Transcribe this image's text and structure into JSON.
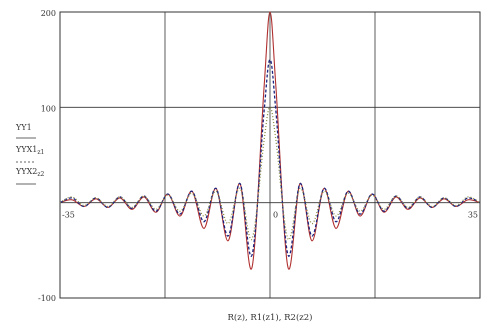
{
  "chart_data": {
    "type": "line",
    "xlabel": "R(z), R1(z1), R2(z2)",
    "ylabel_lines": [
      "YY1",
      "YYX1",
      "YYX2"
    ],
    "ylabel_subscripts": [
      "",
      "z1",
      "z2"
    ],
    "xlim": [
      -35,
      35
    ],
    "ylim": [
      -100,
      200
    ],
    "y_ticks": [
      "200",
      "100",
      "-100"
    ],
    "x_tick_labels": [
      "-35",
      "0",
      "35"
    ],
    "grid": true,
    "series": [
      {
        "color": "#b03030",
        "style": "solid",
        "peak": 200,
        "x": [
          -35,
          -33,
          -31,
          -29,
          -27,
          -25,
          -23,
          -21,
          -19,
          -17,
          -15,
          -13,
          -11,
          -9,
          -7,
          -5,
          -3,
          -1,
          0,
          1,
          3,
          5,
          7,
          9,
          11,
          13,
          15,
          17,
          19,
          21,
          23,
          25,
          27,
          29,
          31,
          33,
          35
        ],
        "y": [
          0,
          3,
          -4,
          4,
          -5,
          5,
          -7,
          6,
          -10,
          9,
          -14,
          12,
          -27,
          15,
          -40,
          20,
          -68,
          120,
          200,
          120,
          -68,
          20,
          -40,
          15,
          -27,
          12,
          -14,
          9,
          -10,
          6,
          -7,
          5,
          -5,
          4,
          -4,
          3,
          0
        ]
      },
      {
        "color": "#1a237e",
        "style": "dashed",
        "peak": 150,
        "x": [
          -35,
          -33,
          -31,
          -29,
          -27,
          -25,
          -23,
          -21,
          -19,
          -17,
          -15,
          -13,
          -11,
          -9,
          -7,
          -5,
          -3,
          -1,
          0,
          1,
          3,
          5,
          7,
          9,
          11,
          13,
          15,
          17,
          19,
          21,
          23,
          25,
          27,
          29,
          31,
          33,
          35
        ],
        "y": [
          0,
          5,
          -4,
          5,
          -5,
          6,
          -6,
          7,
          -9,
          9,
          -12,
          12,
          -20,
          15,
          -35,
          20,
          -55,
          95,
          150,
          95,
          -55,
          20,
          -35,
          15,
          -20,
          12,
          -12,
          9,
          -9,
          7,
          -6,
          6,
          -5,
          5,
          -4,
          5,
          0
        ]
      },
      {
        "color": "#8a8a40",
        "style": "dotted",
        "peak": 100,
        "x": [
          -35,
          -33,
          -31,
          -29,
          -27,
          -25,
          -23,
          -21,
          -19,
          -17,
          -15,
          -13,
          -11,
          -9,
          -7,
          -5,
          -3,
          -1,
          0,
          1,
          3,
          5,
          7,
          9,
          11,
          13,
          15,
          17,
          19,
          21,
          23,
          25,
          27,
          29,
          31,
          33,
          35
        ],
        "y": [
          0,
          6,
          -3,
          5,
          -4,
          6,
          -5,
          7,
          -7,
          8,
          -9,
          10,
          -14,
          12,
          -22,
          15,
          -38,
          65,
          100,
          65,
          -38,
          15,
          -22,
          12,
          -14,
          10,
          -9,
          8,
          -7,
          7,
          -5,
          6,
          -4,
          5,
          -3,
          6,
          0
        ]
      }
    ]
  }
}
